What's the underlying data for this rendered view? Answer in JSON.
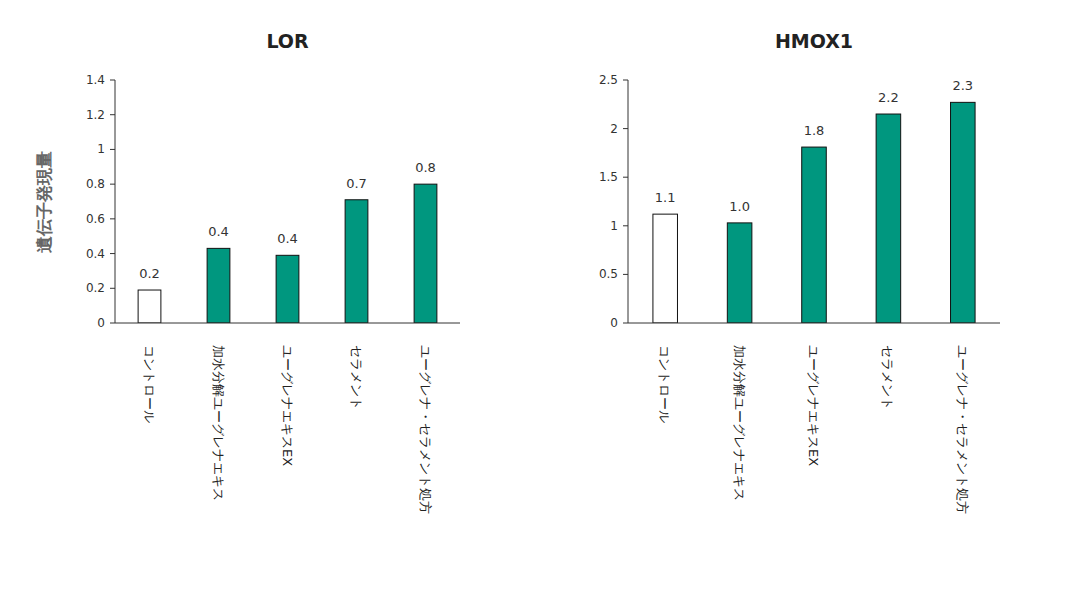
{
  "chart_data": [
    {
      "type": "bar",
      "title": "LOR",
      "y_label": "遺伝子発現量",
      "categories": [
        "コントロール",
        "加水分解ユーグレナエキス",
        "ユーグレナエキスEX",
        "セラメント",
        "ユーグレナ・セラメント処方"
      ],
      "values": [
        0.19,
        0.43,
        0.39,
        0.71,
        0.8
      ],
      "value_labels": [
        "0.2",
        "0.4",
        "0.4",
        "0.7",
        "0.8"
      ],
      "colors": [
        "#ffffff",
        "#00977f",
        "#00977f",
        "#00977f",
        "#00977f"
      ],
      "ylim": [
        0,
        1.4
      ],
      "yticks": [
        0,
        0.2,
        0.4,
        0.6,
        0.8,
        1,
        1.2,
        1.4
      ],
      "grid": false,
      "data_labels": true
    },
    {
      "type": "bar",
      "title": "HMOX1",
      "categories": [
        "コントロール",
        "加水分解ユーグレナエキス",
        "ユーグレナエキスEX",
        "セラメント",
        "ユーグレナ・セラメント処方"
      ],
      "values": [
        1.12,
        1.03,
        1.81,
        2.15,
        2.27
      ],
      "value_labels": [
        "1.1",
        "1.0",
        "1.8",
        "2.2",
        "2.3"
      ],
      "colors": [
        "#ffffff",
        "#00977f",
        "#00977f",
        "#00977f",
        "#00977f"
      ],
      "ylim": [
        0,
        2.5
      ],
      "yticks": [
        0,
        0.5,
        1,
        1.5,
        2,
        2.5
      ],
      "grid": false,
      "data_labels": true
    }
  ]
}
